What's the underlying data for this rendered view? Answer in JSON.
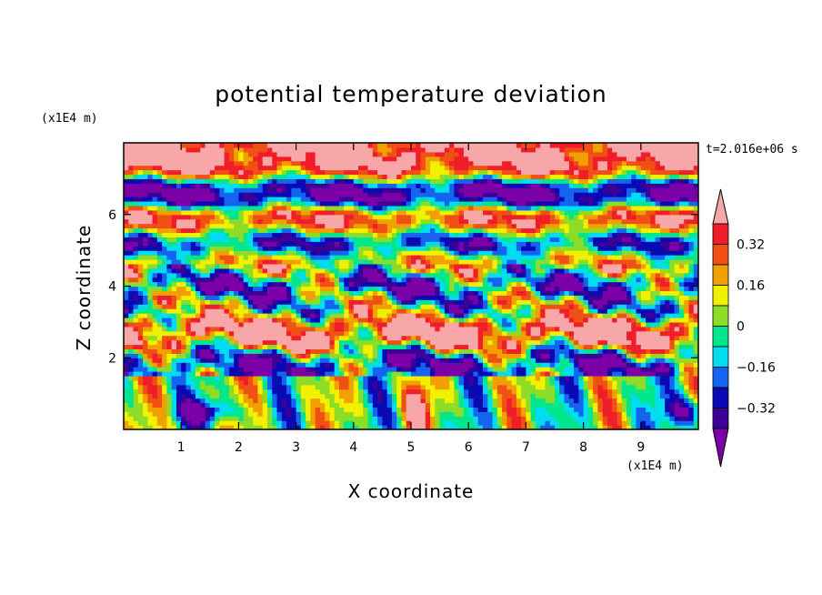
{
  "chart_data": {
    "type": "heatmap",
    "title": "potential temperature deviation",
    "xlabel": "X coordinate",
    "ylabel": "Z coordinate",
    "x_unit": "(x1E4 m)",
    "z_unit": "(x1E4 m)",
    "time_label": "t=2.016e+06 s",
    "xlim": [
      0,
      10
    ],
    "zlim": [
      0,
      8
    ],
    "x_ticks": [
      "1",
      "2",
      "3",
      "4",
      "5",
      "6",
      "7",
      "8",
      "9"
    ],
    "z_ticks": [
      "2",
      "4",
      "6"
    ],
    "colorbar": {
      "levels": [
        -0.4,
        -0.32,
        -0.24,
        -0.16,
        -0.08,
        0,
        0.08,
        0.16,
        0.24,
        0.32,
        0.4
      ],
      "tick_labels": [
        "0.32",
        "0.16",
        "0",
        "−0.16",
        "−0.32"
      ],
      "colors": {
        "under": "#7b00a8",
        "bins": [
          "#3c0096",
          "#0a0ab4",
          "#1464f0",
          "#00dcf0",
          "#00e68c",
          "#8cdc28",
          "#f0f000",
          "#f0a000",
          "#f05014",
          "#f01e28"
        ],
        "over": "#f7a7a7"
      }
    },
    "layers": [
      {
        "z": 7.4,
        "level": 0.45
      },
      {
        "z": 6.6,
        "level": -0.45
      },
      {
        "z": 5.8,
        "level": 0.45
      },
      {
        "z": 5.2,
        "level": -0.45
      },
      {
        "z": 4.6,
        "level": 0.45
      },
      {
        "z": 4.2,
        "level": -0.45
      },
      {
        "z": 3.6,
        "level": 0.0
      },
      {
        "z": 2.6,
        "level": 0.45
      },
      {
        "z": 1.9,
        "level": -0.3
      },
      {
        "z": 1.0,
        "level": 0.0
      }
    ]
  }
}
